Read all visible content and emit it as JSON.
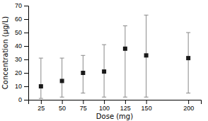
{
  "chart_data": {
    "type": "errorbar",
    "x": [
      25,
      50,
      75,
      100,
      125,
      150,
      200
    ],
    "values": [
      10,
      14,
      20,
      21,
      38,
      33,
      31
    ],
    "lower_errors": [
      9,
      12,
      15,
      19,
      36,
      31,
      26
    ],
    "upper_errors": [
      21,
      17,
      13,
      20,
      17,
      30,
      19
    ],
    "xlabel": "Dose (mg)",
    "ylabel": "Concentration (μg/L)",
    "xlim": [
      10,
      215
    ],
    "xticks": [
      25,
      50,
      75,
      100,
      125,
      150,
      200
    ],
    "ylim": [
      0,
      70
    ],
    "yticks": [
      0,
      10,
      20,
      30,
      40,
      50,
      60,
      70
    ],
    "color": "#1a1a1a",
    "marker": "square",
    "grid": false
  }
}
